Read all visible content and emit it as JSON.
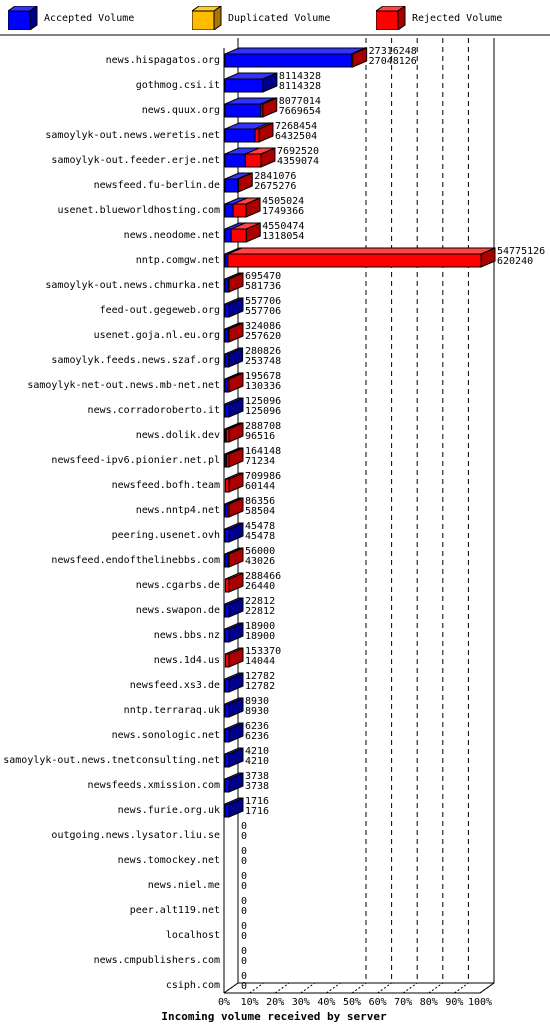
{
  "legend": [
    {
      "label": "Accepted Volume",
      "color": "#0000ff"
    },
    {
      "label": "Duplicated Volume",
      "color": "#ffbb00"
    },
    {
      "label": "Rejected Volume",
      "color": "#ff0000"
    }
  ],
  "colors": {
    "accepted": "#0000ff",
    "duplicated": "#ffbb00",
    "rejected": "#ff0000",
    "shadow_rejected": "#aa0000",
    "shadow_accepted": "#000088"
  },
  "chart_data": {
    "type": "bar",
    "orientation": "horizontal",
    "stacked": true,
    "xlabel": "Incoming volume received by server",
    "xticks": [
      "0%",
      "10%",
      "20%",
      "30%",
      "40%",
      "50%",
      "60%",
      "70%",
      "80%",
      "90%",
      "100%"
    ],
    "xlim": [
      0,
      100
    ],
    "grid": "dashed vertical at 50%, 60%, 70%, 80%, 90%",
    "max_total": 54775126,
    "categories": [
      "news.hispagatos.org",
      "gothmog.csi.it",
      "news.quux.org",
      "samoylyk-out.news.weretis.net",
      "samoylyk-out.feeder.erje.net",
      "newsfeed.fu-berlin.de",
      "usenet.blueworldhosting.com",
      "news.neodome.net",
      "nntp.comgw.net",
      "samoylyk-out.news.chmurka.net",
      "feed-out.gegeweb.org",
      "usenet.goja.nl.eu.org",
      "samoylyk.feeds.news.szaf.org",
      "samoylyk-net-out.news.mb-net.net",
      "news.corradoroberto.it",
      "news.dolik.dev",
      "newsfeed-ipv6.pionier.net.pl",
      "newsfeed.bofh.team",
      "news.nntp4.net",
      "peering.usenet.ovh",
      "newsfeed.endofthelinebbs.com",
      "news.cgarbs.de",
      "news.swapon.de",
      "news.bbs.nz",
      "news.1d4.us",
      "newsfeed.xs3.de",
      "nntp.terraraq.uk",
      "news.sonologic.net",
      "samoylyk-out.news.tnetconsulting.net",
      "newsfeeds.xmission.com",
      "news.furie.org.uk",
      "outgoing.news.lysator.liu.se",
      "news.tomockey.net",
      "news.niel.me",
      "peer.alt119.net",
      "localhost",
      "news.cmpublishers.com",
      "csiph.com"
    ],
    "totals": [
      27316248,
      8114328,
      8077014,
      7268454,
      7692520,
      2841076,
      4505024,
      4550474,
      54775126,
      695470,
      557706,
      324086,
      280826,
      195678,
      125096,
      288708,
      164148,
      709986,
      86356,
      45478,
      56000,
      288466,
      22812,
      18900,
      153370,
      12782,
      8930,
      6236,
      4210,
      3738,
      1716,
      0,
      0,
      0,
      0,
      0,
      0,
      0
    ],
    "accepted": [
      27048126,
      8114328,
      7669654,
      6432504,
      4359074,
      2675276,
      1749366,
      1318054,
      620240,
      581736,
      557706,
      257620,
      253748,
      130336,
      125096,
      96516,
      71234,
      60144,
      58504,
      45478,
      43026,
      26440,
      22812,
      18900,
      14044,
      12782,
      8930,
      6236,
      4210,
      3738,
      1716,
      0,
      0,
      0,
      0,
      0,
      0,
      0
    ]
  }
}
